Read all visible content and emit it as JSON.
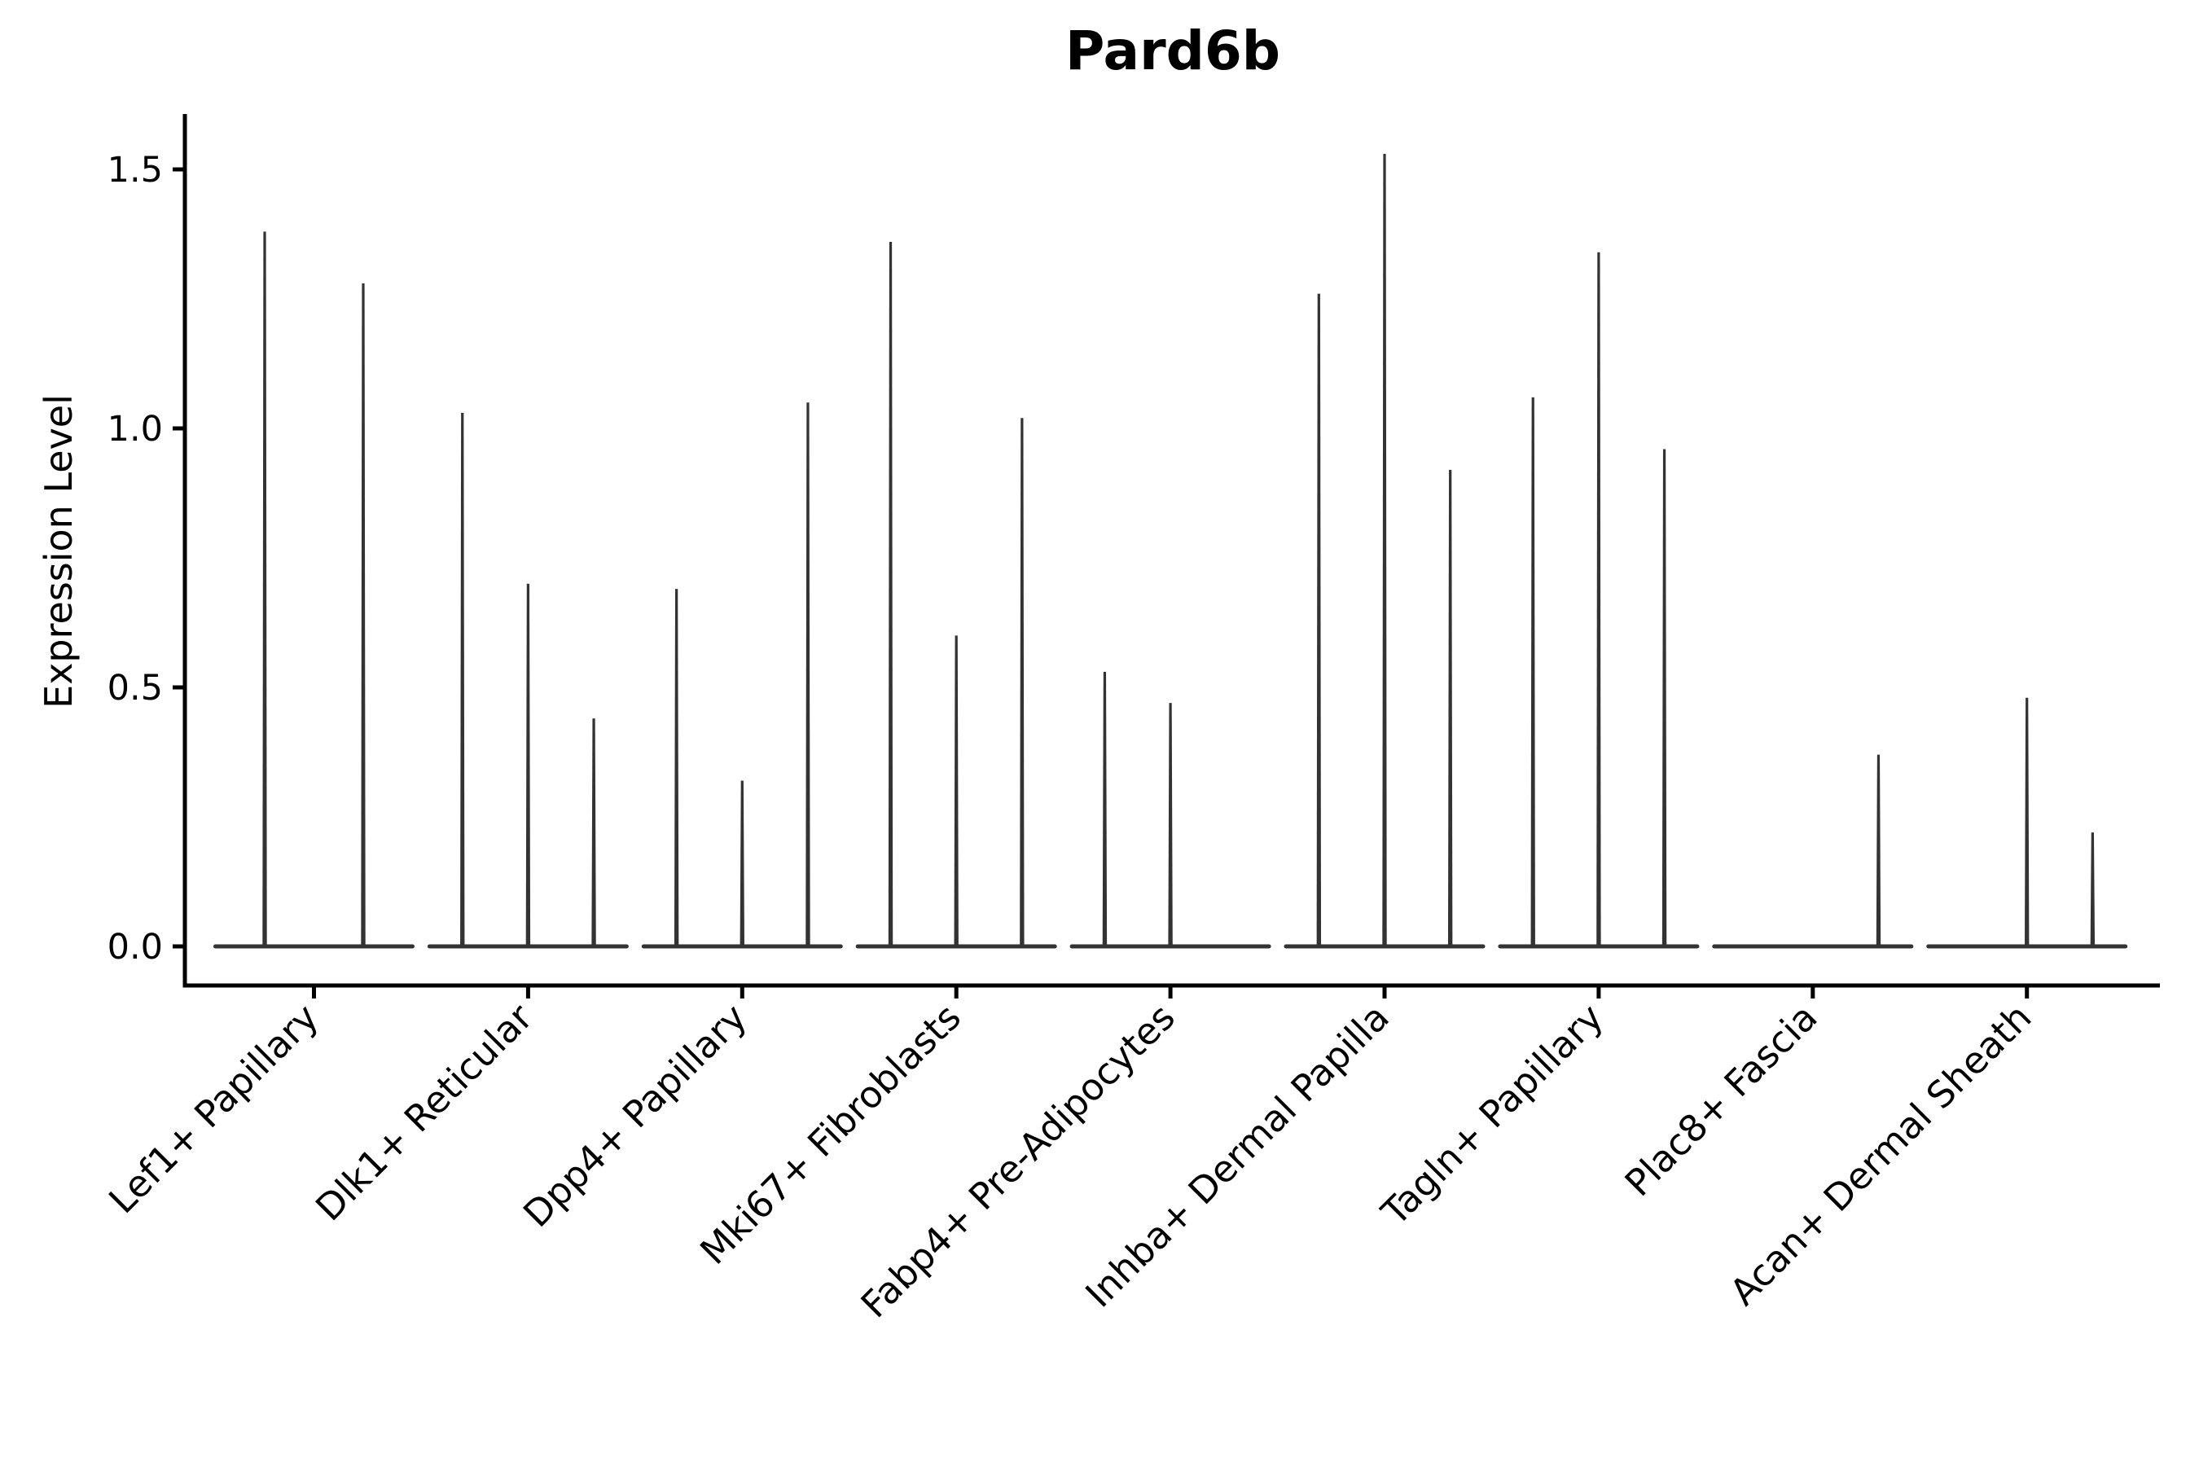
{
  "title": "Pard6b",
  "y_axis": {
    "label": "Expression Level"
  },
  "chart_data": {
    "type": "violin",
    "title": "Pard6b",
    "xlabel": "",
    "ylabel": "Expression Level",
    "ylim": [
      -0.07,
      1.61
    ],
    "yticks": [
      0.0,
      0.5,
      1.0,
      1.5
    ],
    "grid": false,
    "legend": null,
    "colors": {
      "violin": "#333333",
      "spine": "#000000",
      "text": "#000000"
    },
    "categories": [
      "Lef1+ Papillary",
      "Dlk1+ Reticular",
      "Dpp4+ Papillary",
      "Mki67+ Fibroblasts",
      "Fabp4+ Pre-Adipocytes",
      "Inhba+ Dermal Papilla",
      "Tagln+ Papillary",
      "Plac8+ Fascia",
      "Acan+ Dermal Sheath"
    ],
    "violins": [
      {
        "category": "Lef1+ Papillary",
        "max_values": [
          1.38,
          1.28
        ]
      },
      {
        "category": "Dlk1+ Reticular",
        "max_values": [
          1.03,
          0.7,
          0.44
        ]
      },
      {
        "category": "Dpp4+ Papillary",
        "max_values": [
          0.69,
          0.32,
          1.05
        ]
      },
      {
        "category": "Mki67+ Fibroblasts",
        "max_values": [
          1.36,
          0.6,
          1.02
        ]
      },
      {
        "category": "Fabp4+ Pre-Adipocytes",
        "max_values": [
          0.53,
          0.47,
          0
        ]
      },
      {
        "category": "Inhba+ Dermal Papilla",
        "max_values": [
          1.26,
          1.53,
          0.92
        ]
      },
      {
        "category": "Tagln+ Papillary",
        "max_values": [
          1.06,
          1.34,
          0.96
        ]
      },
      {
        "category": "Plac8+ Fascia",
        "max_values": [
          0,
          0,
          0.37
        ]
      },
      {
        "category": "Acan+ Dermal Sheath",
        "max_values": [
          0,
          0.48,
          0.22
        ]
      }
    ],
    "note": "Violins are flattened at expression 0 with a thin spike up to each sub-violin's maximum; 0 means no visible spike."
  }
}
